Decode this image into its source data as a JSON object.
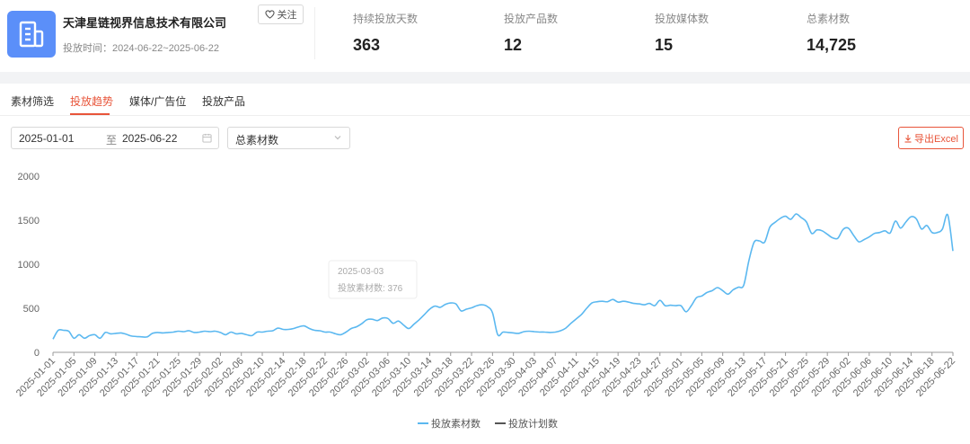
{
  "header": {
    "company_name": "天津星链视界信息技术有限公司",
    "period_label": "投放时间：",
    "period_value": "2024-06-22~2025-06-22",
    "follow_label": "关注",
    "brand_color": "#5b8ff9",
    "stats": [
      {
        "label": "持续投放天数",
        "value": "363"
      },
      {
        "label": "投放产品数",
        "value": "12"
      },
      {
        "label": "投放媒体数",
        "value": "15"
      },
      {
        "label": "总素材数",
        "value": "14,725"
      }
    ]
  },
  "tabs": [
    {
      "label": "素材筛选",
      "active": false
    },
    {
      "label": "投放趋势",
      "active": true
    },
    {
      "label": "媒体/广告位",
      "active": false
    },
    {
      "label": "投放产品",
      "active": false
    }
  ],
  "filters": {
    "date_start": "2025-01-01",
    "date_separator": "至",
    "date_end": "2025-06-22",
    "metric": "总素材数",
    "export_label": "导出Excel",
    "accent_color": "#e8553a"
  },
  "chart_data": {
    "type": "line",
    "title": "",
    "xlabel": "",
    "ylabel": "",
    "ylim": [
      0,
      2000
    ],
    "yticks": [
      0,
      500,
      1000,
      1500,
      2000
    ],
    "grid": false,
    "legend_position": "bottom-center",
    "x_tick_labels": [
      "2025-01-01",
      "2025-01-05",
      "2025-01-09",
      "2025-01-13",
      "2025-01-17",
      "2025-01-21",
      "2025-01-25",
      "2025-01-29",
      "2025-02-02",
      "2025-02-06",
      "2025-02-10",
      "2025-02-14",
      "2025-02-18",
      "2025-02-22",
      "2025-02-26",
      "2025-03-02",
      "2025-03-06",
      "2025-03-10",
      "2025-03-14",
      "2025-03-18",
      "2025-03-22",
      "2025-03-26",
      "2025-03-30",
      "2025-04-03",
      "2025-04-07",
      "2025-04-11",
      "2025-04-15",
      "2025-04-19",
      "2025-04-23",
      "2025-04-27",
      "2025-05-01",
      "2025-05-05",
      "2025-05-09",
      "2025-05-13",
      "2025-05-17",
      "2025-05-21",
      "2025-05-25",
      "2025-05-29",
      "2025-06-02",
      "2025-06-06",
      "2025-06-10",
      "2025-06-14",
      "2025-06-18",
      "2025-06-22"
    ],
    "series": [
      {
        "name": "投放素材数",
        "color": "#5bb8f0",
        "points": [
          [
            "2025-01-01",
            150
          ],
          [
            "2025-01-02",
            250
          ],
          [
            "2025-01-03",
            250
          ],
          [
            "2025-01-04",
            240
          ],
          [
            "2025-01-05",
            160
          ],
          [
            "2025-01-06",
            200
          ],
          [
            "2025-01-07",
            160
          ],
          [
            "2025-01-08",
            190
          ],
          [
            "2025-01-09",
            200
          ],
          [
            "2025-01-10",
            160
          ],
          [
            "2025-01-11",
            225
          ],
          [
            "2025-01-12",
            210
          ],
          [
            "2025-01-13",
            215
          ],
          [
            "2025-01-14",
            220
          ],
          [
            "2025-01-15",
            205
          ],
          [
            "2025-01-16",
            185
          ],
          [
            "2025-01-17",
            180
          ],
          [
            "2025-01-18",
            175
          ],
          [
            "2025-01-19",
            175
          ],
          [
            "2025-01-20",
            215
          ],
          [
            "2025-01-21",
            225
          ],
          [
            "2025-01-22",
            220
          ],
          [
            "2025-01-23",
            225
          ],
          [
            "2025-01-24",
            230
          ],
          [
            "2025-01-25",
            240
          ],
          [
            "2025-01-26",
            235
          ],
          [
            "2025-01-27",
            245
          ],
          [
            "2025-01-28",
            225
          ],
          [
            "2025-01-29",
            230
          ],
          [
            "2025-01-30",
            240
          ],
          [
            "2025-01-31",
            235
          ],
          [
            "2025-02-01",
            240
          ],
          [
            "2025-02-02",
            225
          ],
          [
            "2025-02-03",
            200
          ],
          [
            "2025-02-04",
            230
          ],
          [
            "2025-02-05",
            210
          ],
          [
            "2025-02-06",
            215
          ],
          [
            "2025-02-07",
            200
          ],
          [
            "2025-02-08",
            190
          ],
          [
            "2025-02-09",
            230
          ],
          [
            "2025-02-10",
            230
          ],
          [
            "2025-02-11",
            240
          ],
          [
            "2025-02-12",
            245
          ],
          [
            "2025-02-13",
            275
          ],
          [
            "2025-02-14",
            260
          ],
          [
            "2025-02-15",
            260
          ],
          [
            "2025-02-16",
            270
          ],
          [
            "2025-02-17",
            290
          ],
          [
            "2025-02-18",
            300
          ],
          [
            "2025-02-19",
            270
          ],
          [
            "2025-02-20",
            250
          ],
          [
            "2025-02-21",
            245
          ],
          [
            "2025-02-22",
            230
          ],
          [
            "2025-02-23",
            230
          ],
          [
            "2025-02-24",
            210
          ],
          [
            "2025-02-25",
            200
          ],
          [
            "2025-02-26",
            230
          ],
          [
            "2025-02-27",
            270
          ],
          [
            "2025-02-28",
            290
          ],
          [
            "2025-03-01",
            325
          ],
          [
            "2025-03-02",
            370
          ],
          [
            "2025-03-03",
            376
          ],
          [
            "2025-03-04",
            360
          ],
          [
            "2025-03-05",
            390
          ],
          [
            "2025-03-06",
            385
          ],
          [
            "2025-03-07",
            330
          ],
          [
            "2025-03-08",
            355
          ],
          [
            "2025-03-09",
            310
          ],
          [
            "2025-03-10",
            270
          ],
          [
            "2025-03-11",
            320
          ],
          [
            "2025-03-12",
            370
          ],
          [
            "2025-03-13",
            430
          ],
          [
            "2025-03-14",
            490
          ],
          [
            "2025-03-15",
            525
          ],
          [
            "2025-03-16",
            510
          ],
          [
            "2025-03-17",
            545
          ],
          [
            "2025-03-18",
            560
          ],
          [
            "2025-03-19",
            550
          ],
          [
            "2025-03-20",
            470
          ],
          [
            "2025-03-21",
            490
          ],
          [
            "2025-03-22",
            505
          ],
          [
            "2025-03-23",
            530
          ],
          [
            "2025-03-24",
            540
          ],
          [
            "2025-03-25",
            520
          ],
          [
            "2025-03-26",
            450
          ],
          [
            "2025-03-27",
            200
          ],
          [
            "2025-03-28",
            230
          ],
          [
            "2025-03-29",
            225
          ],
          [
            "2025-03-30",
            220
          ],
          [
            "2025-03-31",
            215
          ],
          [
            "2025-04-01",
            235
          ],
          [
            "2025-04-02",
            240
          ],
          [
            "2025-04-03",
            235
          ],
          [
            "2025-04-04",
            230
          ],
          [
            "2025-04-05",
            230
          ],
          [
            "2025-04-06",
            225
          ],
          [
            "2025-04-07",
            230
          ],
          [
            "2025-04-08",
            245
          ],
          [
            "2025-04-09",
            275
          ],
          [
            "2025-04-10",
            330
          ],
          [
            "2025-04-11",
            380
          ],
          [
            "2025-04-12",
            430
          ],
          [
            "2025-04-13",
            500
          ],
          [
            "2025-04-14",
            560
          ],
          [
            "2025-04-15",
            575
          ],
          [
            "2025-04-16",
            580
          ],
          [
            "2025-04-17",
            575
          ],
          [
            "2025-04-18",
            600
          ],
          [
            "2025-04-19",
            570
          ],
          [
            "2025-04-20",
            580
          ],
          [
            "2025-04-21",
            570
          ],
          [
            "2025-04-22",
            555
          ],
          [
            "2025-04-23",
            550
          ],
          [
            "2025-04-24",
            540
          ],
          [
            "2025-04-25",
            555
          ],
          [
            "2025-04-26",
            530
          ],
          [
            "2025-04-27",
            590
          ],
          [
            "2025-04-28",
            530
          ],
          [
            "2025-04-29",
            535
          ],
          [
            "2025-04-30",
            530
          ],
          [
            "2025-05-01",
            530
          ],
          [
            "2025-05-02",
            460
          ],
          [
            "2025-05-03",
            530
          ],
          [
            "2025-05-04",
            620
          ],
          [
            "2025-05-05",
            640
          ],
          [
            "2025-05-06",
            680
          ],
          [
            "2025-05-07",
            700
          ],
          [
            "2025-05-08",
            735
          ],
          [
            "2025-05-09",
            700
          ],
          [
            "2025-05-10",
            660
          ],
          [
            "2025-05-11",
            710
          ],
          [
            "2025-05-12",
            740
          ],
          [
            "2025-05-13",
            760
          ],
          [
            "2025-05-14",
            1040
          ],
          [
            "2025-05-15",
            1250
          ],
          [
            "2025-05-16",
            1265
          ],
          [
            "2025-05-17",
            1250
          ],
          [
            "2025-05-18",
            1420
          ],
          [
            "2025-05-19",
            1475
          ],
          [
            "2025-05-20",
            1520
          ],
          [
            "2025-05-21",
            1545
          ],
          [
            "2025-05-22",
            1510
          ],
          [
            "2025-05-23",
            1570
          ],
          [
            "2025-05-24",
            1530
          ],
          [
            "2025-05-25",
            1480
          ],
          [
            "2025-05-26",
            1350
          ],
          [
            "2025-05-27",
            1390
          ],
          [
            "2025-05-28",
            1380
          ],
          [
            "2025-05-29",
            1340
          ],
          [
            "2025-05-30",
            1300
          ],
          [
            "2025-05-31",
            1295
          ],
          [
            "2025-06-01",
            1395
          ],
          [
            "2025-06-02",
            1410
          ],
          [
            "2025-06-03",
            1330
          ],
          [
            "2025-06-04",
            1255
          ],
          [
            "2025-06-05",
            1280
          ],
          [
            "2025-06-06",
            1310
          ],
          [
            "2025-06-07",
            1350
          ],
          [
            "2025-06-08",
            1360
          ],
          [
            "2025-06-09",
            1380
          ],
          [
            "2025-06-10",
            1355
          ],
          [
            "2025-06-11",
            1490
          ],
          [
            "2025-06-12",
            1410
          ],
          [
            "2025-06-13",
            1480
          ],
          [
            "2025-06-14",
            1540
          ],
          [
            "2025-06-15",
            1515
          ],
          [
            "2025-06-16",
            1400
          ],
          [
            "2025-06-17",
            1440
          ],
          [
            "2025-06-18",
            1360
          ],
          [
            "2025-06-19",
            1360
          ],
          [
            "2025-06-20",
            1400
          ],
          [
            "2025-06-21",
            1560
          ],
          [
            "2025-06-22",
            1150
          ]
        ]
      },
      {
        "name": "投放计划数",
        "color": "#555555",
        "points": []
      }
    ],
    "tooltip": {
      "date": "2025-03-03",
      "label": "投放素材数",
      "value": "376"
    }
  }
}
